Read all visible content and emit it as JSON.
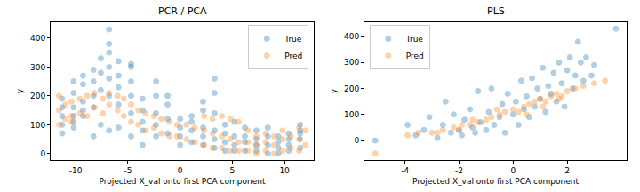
{
  "chart_data": [
    {
      "type": "scatter",
      "title": "PCR / PCA",
      "x_label": "Projected X_val onto first PCA component",
      "y_label": "y",
      "xlim": [
        -12.4,
        12.8
      ],
      "xticks": [
        -10,
        -5,
        0,
        5,
        10
      ],
      "ylim": [
        -22,
        455
      ],
      "yticks": [
        0,
        100,
        200,
        300,
        400
      ],
      "legend": "upper right",
      "marker": "circle",
      "series": [
        {
          "name": "True",
          "color": "#1f77b4",
          "x": [
            -11.3,
            -11.3,
            -11.3,
            -11.3,
            -11.3,
            -10.2,
            -10.2,
            -10.2,
            -10.2,
            -10.2,
            -10.2,
            -9.3,
            -9.3,
            -9.3,
            -9.3,
            -9.3,
            -8.3,
            -8.3,
            -8.3,
            -8.3,
            -8.3,
            -7.6,
            -7.6,
            -7.6,
            -7.6,
            -6.8,
            -6.8,
            -6.8,
            -6.8,
            -6.8,
            -6.8,
            -6.8,
            -5.9,
            -5.9,
            -5.9,
            -5.9,
            -5.9,
            -4.7,
            -4.7,
            -4.7,
            -4.7,
            -4.7,
            -4.7,
            -3.6,
            -3.6,
            -3.6,
            -3.6,
            -3.6,
            -2.3,
            -2.3,
            -2.3,
            -2.3,
            -2.3,
            -1.2,
            -1.2,
            -1.2,
            -1.2,
            0,
            0,
            0,
            0,
            1.1,
            1.1,
            1.1,
            1.1,
            2.2,
            2.2,
            2.2,
            2.2,
            2.2,
            3.3,
            3.3,
            3.3,
            3.3,
            3.3,
            3.3,
            4.3,
            4.3,
            4.3,
            4.3,
            5.2,
            5.2,
            5.2,
            5.2,
            6.2,
            6.2,
            6.2,
            6.2,
            7.3,
            7.3,
            7.3,
            7.3,
            8.4,
            8.4,
            8.4,
            8.4,
            9.4,
            9.4,
            9.4,
            9.4,
            10.4,
            10.4,
            10.4,
            10.4,
            11.5,
            11.5,
            11.5,
            11.5,
            11.5
          ],
          "values": [
            70,
            100,
            130,
            160,
            190,
            90,
            130,
            160,
            210,
            250,
            110,
            130,
            180,
            240,
            270,
            150,
            60,
            160,
            200,
            250,
            290,
            100,
            220,
            280,
            330,
            200,
            260,
            300,
            350,
            380,
            430,
            80,
            170,
            230,
            270,
            320,
            90,
            140,
            200,
            250,
            300,
            310,
            60,
            80,
            110,
            150,
            190,
            30,
            60,
            100,
            140,
            200,
            250,
            70,
            120,
            170,
            200,
            30,
            60,
            90,
            120,
            40,
            80,
            110,
            130,
            30,
            60,
            90,
            150,
            180,
            20,
            50,
            80,
            140,
            260,
            210,
            10,
            40,
            70,
            100,
            10,
            30,
            60,
            110,
            10,
            40,
            60,
            90,
            10,
            30,
            50,
            80,
            0,
            30,
            60,
            90,
            0,
            20,
            40,
            60,
            10,
            30,
            50,
            70,
            20,
            50,
            80,
            100,
            70
          ]
        },
        {
          "name": "Pred",
          "color": "#ff7f0e",
          "x": [
            -11.6,
            -11.6,
            -11.6,
            -11.0,
            -11.0,
            -10.4,
            -10.4,
            -10.4,
            -9.6,
            -9.6,
            -8.9,
            -8.9,
            -8.2,
            -8.2,
            -7.4,
            -7.4,
            -6.8,
            -6.8,
            -6.0,
            -6.0,
            -5.4,
            -5.4,
            -4.7,
            -4.7,
            -4.0,
            -4.0,
            -3.3,
            -3.3,
            -2.5,
            -2.5,
            -1.8,
            -1.8,
            -1.0,
            -1.0,
            -0.3,
            -0.3,
            0.6,
            0.6,
            1.4,
            1.4,
            2.3,
            2.3,
            2.3,
            3.1,
            3.1,
            3.1,
            4.0,
            4.0,
            4.0,
            4.8,
            4.8,
            4.8,
            5.6,
            5.6,
            5.6,
            6.5,
            6.5,
            6.5,
            7.3,
            7.3,
            7.3,
            8.2,
            8.2,
            8.2,
            9.0,
            9.0,
            9.0,
            9.8,
            9.8,
            9.8,
            10.6,
            10.6,
            11.4,
            11.4,
            11.4,
            12.0,
            12.0
          ],
          "values": [
            100,
            150,
            200,
            120,
            170,
            130,
            180,
            110,
            140,
            190,
            130,
            200,
            160,
            210,
            140,
            190,
            170,
            210,
            150,
            200,
            130,
            190,
            110,
            170,
            100,
            150,
            80,
            140,
            90,
            130,
            70,
            120,
            60,
            110,
            60,
            100,
            50,
            100,
            40,
            90,
            30,
            80,
            130,
            20,
            70,
            120,
            20,
            60,
            130,
            10,
            50,
            120,
            10,
            40,
            110,
            10,
            40,
            80,
            0,
            30,
            60,
            10,
            40,
            70,
            0,
            30,
            60,
            10,
            50,
            80,
            20,
            60,
            10,
            50,
            90,
            30,
            80
          ]
        }
      ]
    },
    {
      "type": "scatter",
      "title": "PLS",
      "x_label": "Projected X_val onto first PCA component",
      "y_label": "y",
      "xlim": [
        -5.5,
        4.2
      ],
      "xticks": [
        -4,
        -2,
        0,
        2
      ],
      "ylim": [
        -75,
        455
      ],
      "yticks": [
        0,
        100,
        200,
        300,
        400
      ],
      "legend": "upper left",
      "marker": "circle",
      "series": [
        {
          "name": "True",
          "color": "#1f77b4",
          "x": [
            -5.1,
            -3.9,
            -3.6,
            -3.3,
            -3.1,
            -2.8,
            -2.6,
            -2.5,
            -2.3,
            -2.2,
            -2.0,
            -1.9,
            -1.8,
            -1.6,
            -1.5,
            -1.4,
            -1.3,
            -1.2,
            -1.0,
            -0.9,
            -0.8,
            -0.7,
            -0.5,
            -0.4,
            -0.3,
            -0.2,
            0,
            0.1,
            0.2,
            0.3,
            0.4,
            0.5,
            0.6,
            0.7,
            0.8,
            0.9,
            1.0,
            1.1,
            1.2,
            1.3,
            1.4,
            1.5,
            1.6,
            1.7,
            1.8,
            1.9,
            2.0,
            2.1,
            2.2,
            2.3,
            2.4,
            2.5,
            2.6,
            2.7,
            2.9,
            3.0,
            3.8
          ],
          "values": [
            0,
            60,
            20,
            40,
            90,
            10,
            60,
            150,
            30,
            100,
            40,
            20,
            80,
            120,
            50,
            30,
            190,
            70,
            40,
            110,
            200,
            60,
            90,
            140,
            30,
            180,
            100,
            150,
            60,
            230,
            120,
            170,
            90,
            240,
            130,
            200,
            160,
            280,
            110,
            210,
            180,
            260,
            150,
            300,
            220,
            130,
            270,
            320,
            200,
            250,
            380,
            300,
            230,
            320,
            250,
            290,
            430
          ]
        },
        {
          "name": "Pred",
          "color": "#ff7f0e",
          "x": [
            -5.1,
            -3.9,
            -3.5,
            -3.0,
            -2.6,
            -2.2,
            -1.9,
            -1.6,
            -1.3,
            -1.0,
            -0.8,
            -0.5,
            -0.3,
            0,
            0.2,
            0.4,
            0.6,
            0.8,
            1.0,
            1.2,
            1.4,
            1.6,
            1.8,
            2.0,
            2.3,
            2.6,
            3.0,
            3.4,
            -2.8,
            -2.0,
            -1.5,
            -0.6,
            0.5,
            1.1,
            1.7
          ],
          "values": [
            -50,
            20,
            30,
            30,
            40,
            50,
            60,
            60,
            70,
            80,
            90,
            100,
            110,
            120,
            110,
            130,
            140,
            150,
            160,
            150,
            170,
            180,
            170,
            190,
            200,
            210,
            220,
            230,
            30,
            40,
            80,
            120,
            100,
            130,
            160
          ]
        }
      ]
    }
  ]
}
